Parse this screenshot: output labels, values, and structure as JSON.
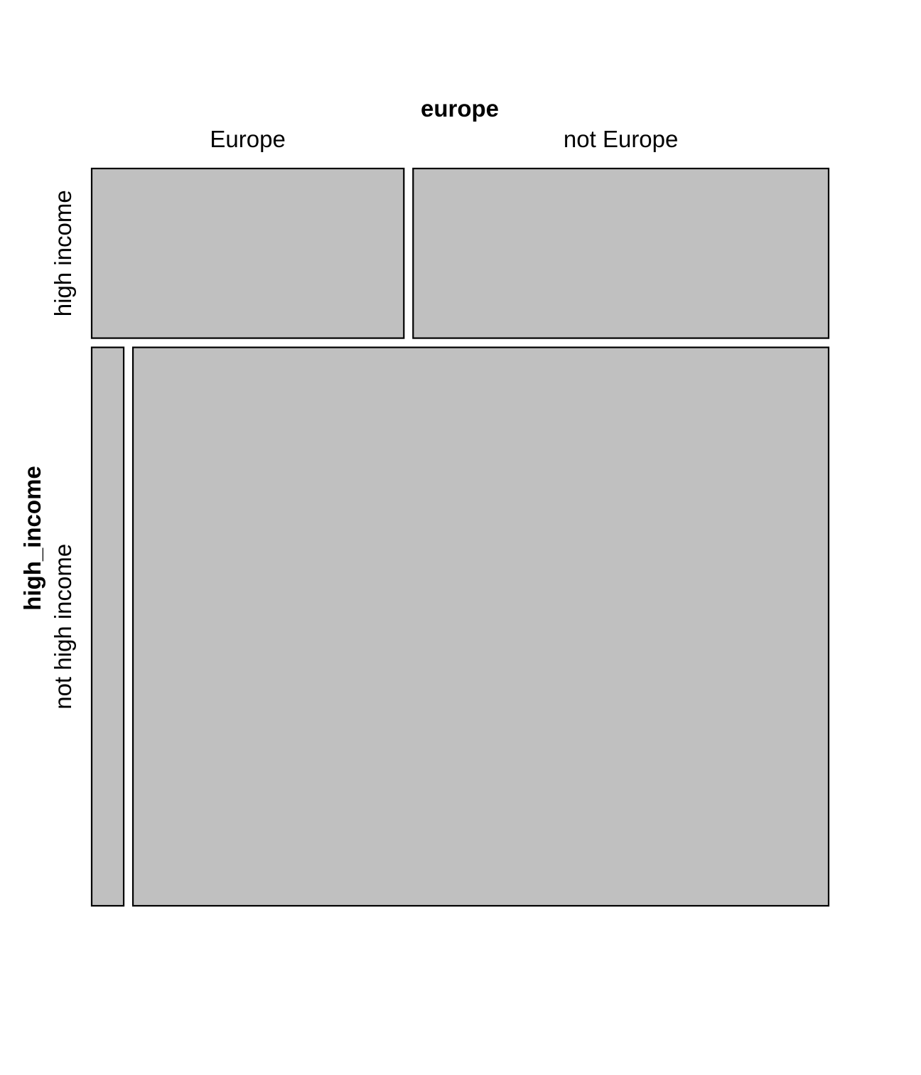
{
  "chart_data": {
    "type": "mosaic",
    "row_variable": "high_income",
    "col_variable": "europe",
    "row_levels": [
      "high income",
      "not high income"
    ],
    "col_levels": [
      "Europe",
      "not Europe"
    ],
    "row_proportions": [
      0.233,
      0.767
    ],
    "col_proportions_within_row": [
      [
        0.429,
        0.571
      ],
      [
        0.044,
        0.956
      ]
    ],
    "fill_color": "#c0c0c0",
    "border_color": "#000000"
  }
}
